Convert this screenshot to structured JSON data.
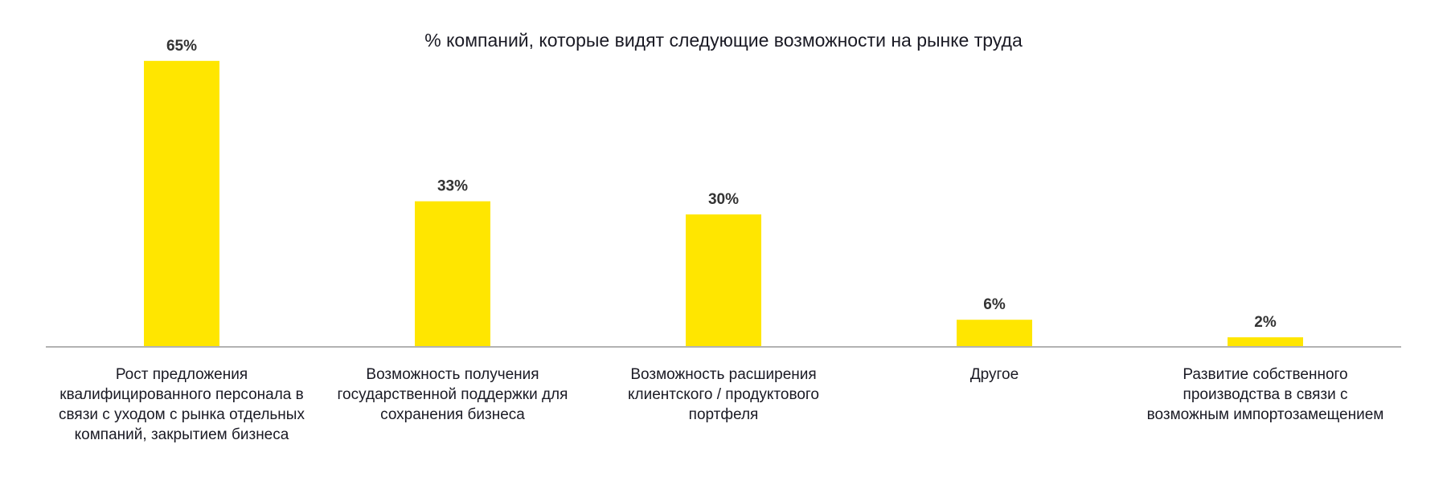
{
  "chart_data": {
    "type": "bar",
    "title": "% компаний, которые видят следующие возможности на рынке труда",
    "categories": [
      "Рост предложения квалифицированного персонала в связи с уходом с рынка отдельных компаний, закрытием бизнеса",
      "Возможность получения государственной поддержки для сохранения бизнеса",
      "Возможность расширения клиентского / продуктового портфеля",
      "Другое",
      "Развитие собственного производства в связи с возможным импортозамещением"
    ],
    "values": [
      65,
      33,
      30,
      6,
      2
    ],
    "value_labels": [
      "65%",
      "33%",
      "30%",
      "6%",
      "2%"
    ],
    "color": "#ffe600"
  }
}
